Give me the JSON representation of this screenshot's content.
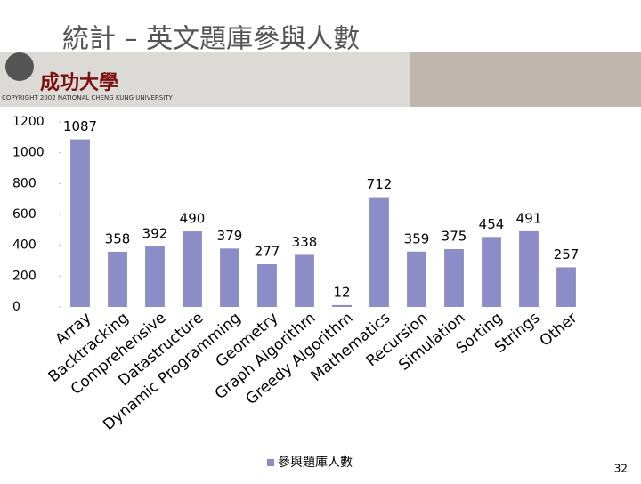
{
  "header": {
    "title": "統計 – 英文題庫參與人數",
    "logo": "成功大學",
    "copyright": "COPYRIGHT 2002 NATIONAL CHENG KUNG UNIVERSITY"
  },
  "page_number": "32",
  "chart_data": {
    "type": "bar",
    "categories": [
      "Array",
      "Backtracking",
      "Comprehensive",
      "Datastructure",
      "Dynamic Programming",
      "Geometry",
      "Graph Algorithm",
      "Greedy Algorithm",
      "Mathematics",
      "Recursion",
      "Simulation",
      "Sorting",
      "Strings",
      "Other"
    ],
    "series": [
      {
        "name": "參與題庫人數",
        "color": "#8c8cc8",
        "values": [
          1087,
          358,
          392,
          490,
          379,
          277,
          338,
          12,
          712,
          359,
          375,
          454,
          491,
          257
        ]
      }
    ],
    "ylim": [
      0,
      1200
    ],
    "yticks": [
      0,
      200,
      400,
      600,
      800,
      1000,
      1200
    ],
    "grid": false,
    "legend": "bottom"
  }
}
